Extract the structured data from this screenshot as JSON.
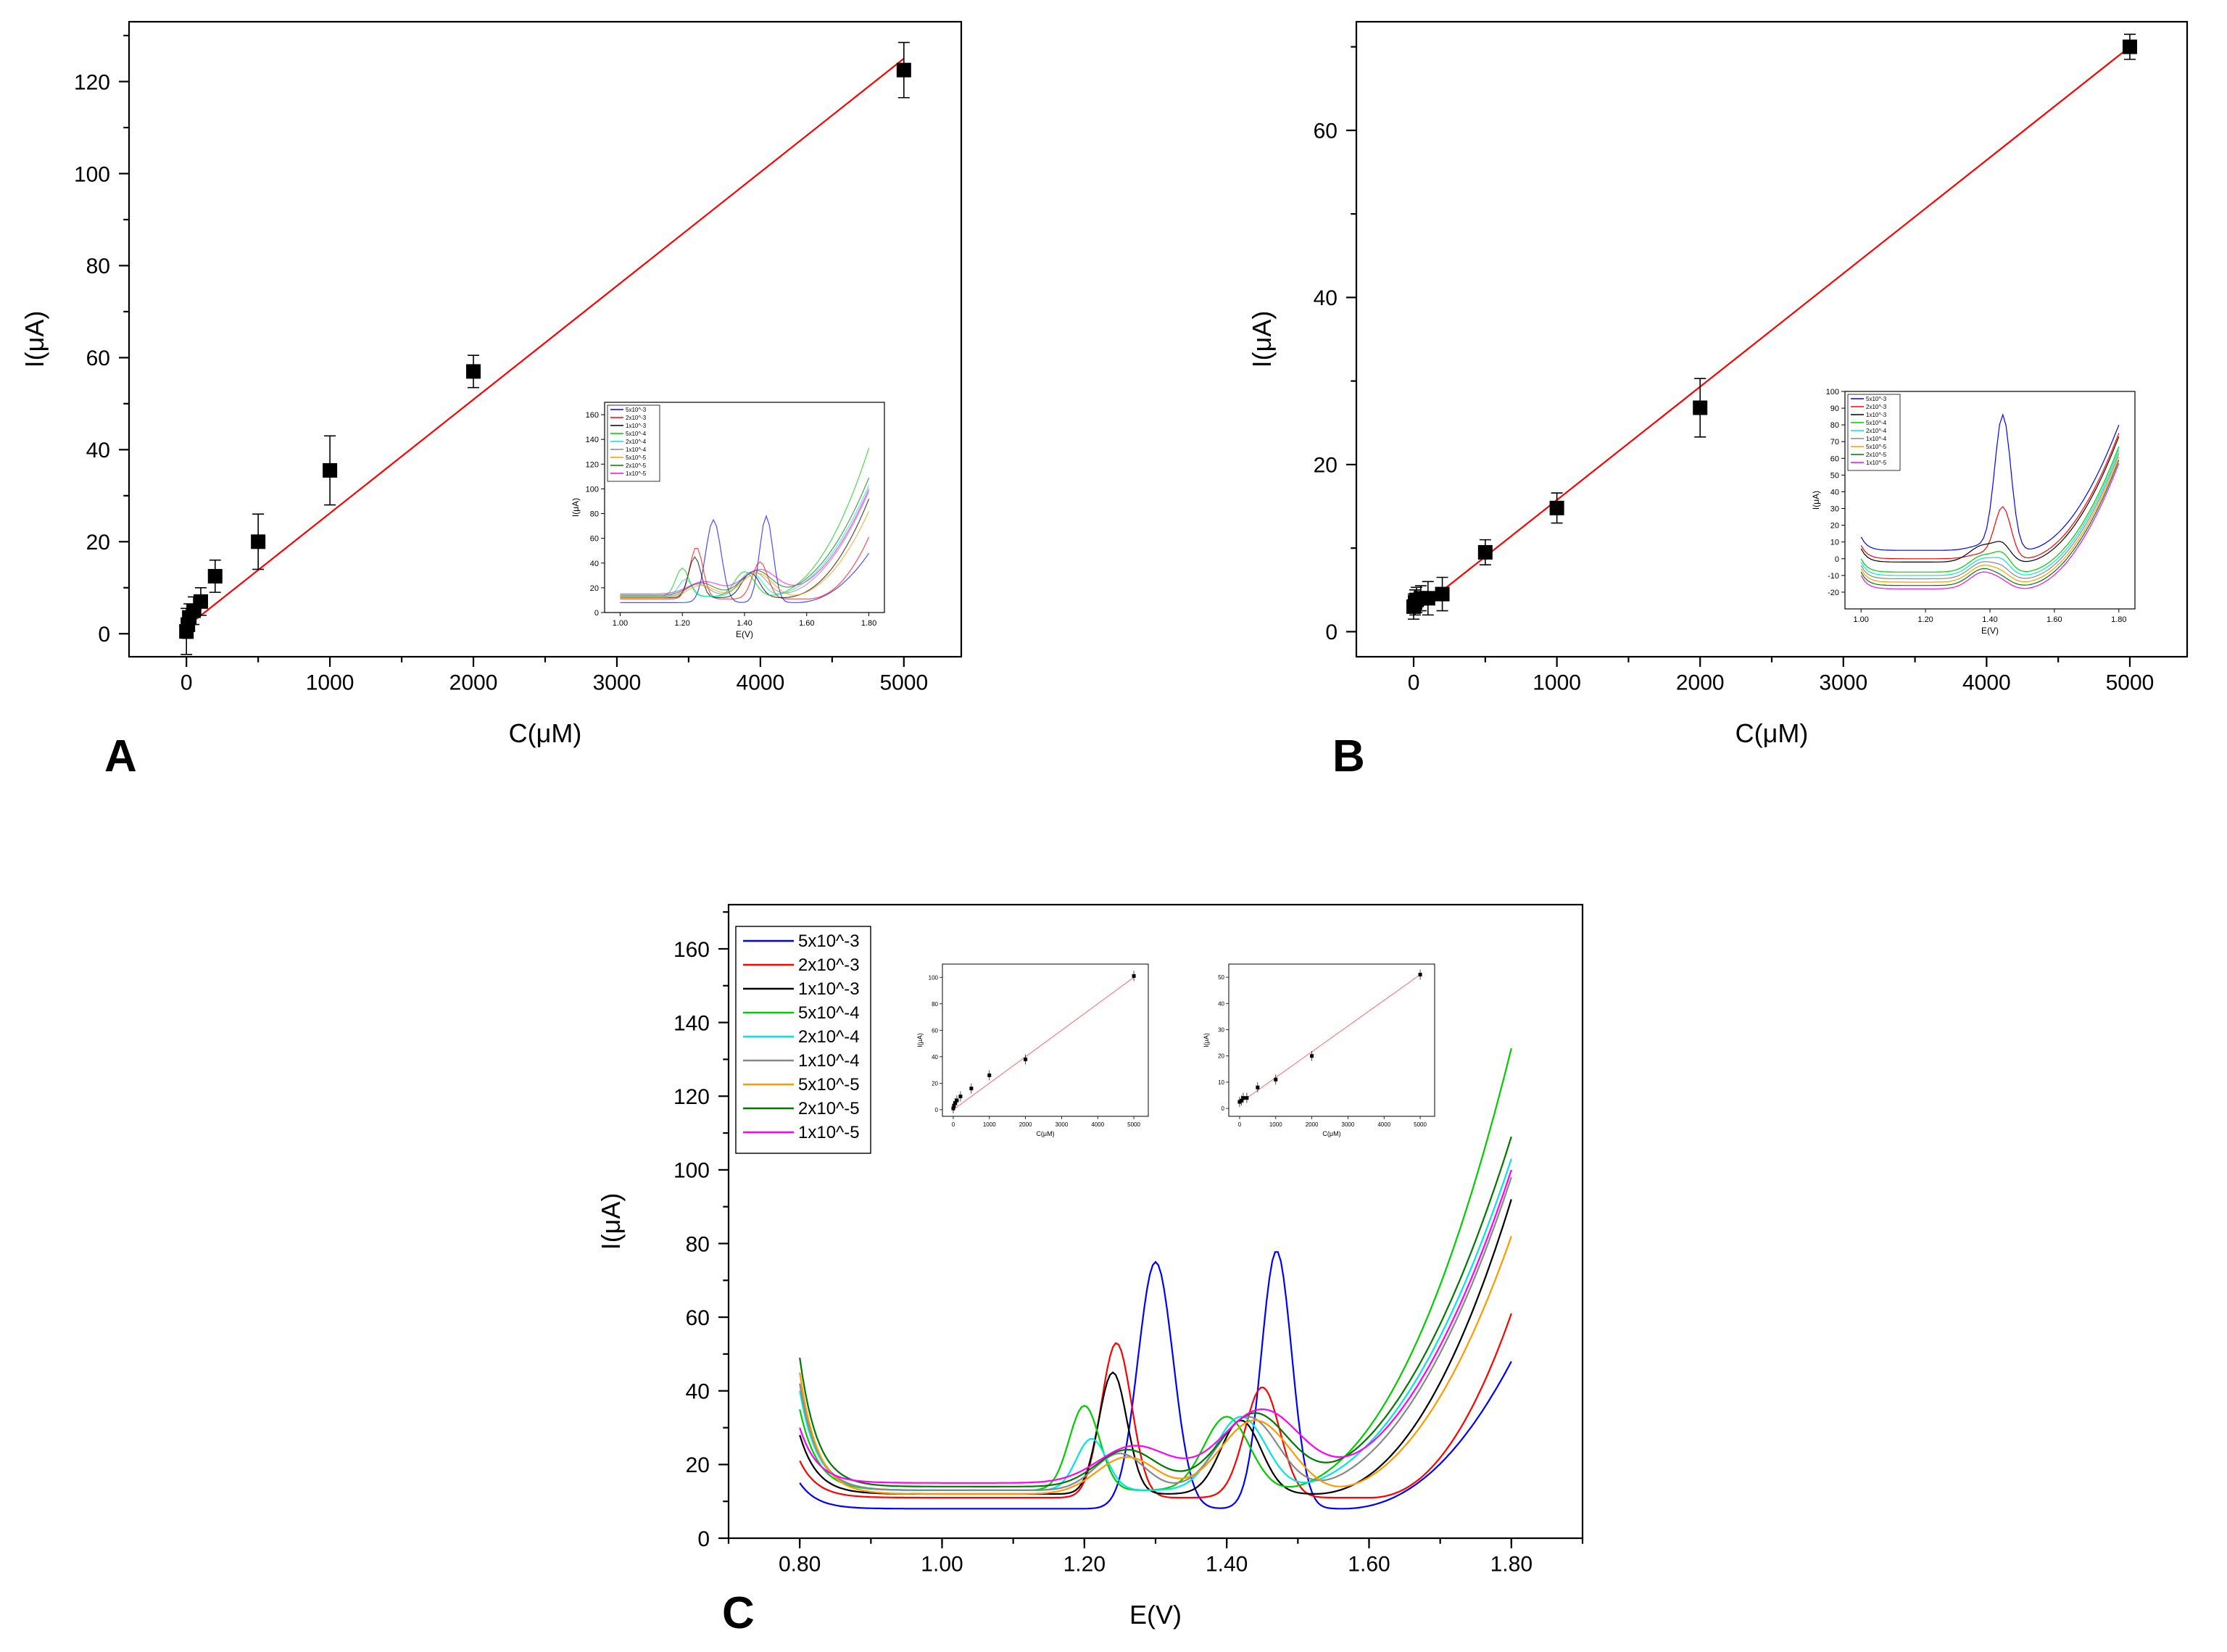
{
  "chart_data": [
    {
      "id": "A",
      "panel_label": "A",
      "type": "scatter",
      "title": "",
      "xlabel": "C(μM)",
      "ylabel": "I(μA)",
      "xlim": [
        -400,
        5400
      ],
      "ylim": [
        -5,
        133
      ],
      "xticks": [
        0,
        1000,
        2000,
        3000,
        4000,
        5000
      ],
      "yticks": [
        0,
        20,
        40,
        60,
        80,
        100,
        120
      ],
      "x": [
        0,
        10,
        20,
        50,
        100,
        200,
        500,
        1000,
        2000,
        5000
      ],
      "y": [
        0.5,
        2,
        3.5,
        5,
        7,
        12.5,
        20,
        35.5,
        57,
        122.5
      ],
      "yerr": [
        5,
        3,
        3,
        3,
        3,
        3.5,
        6,
        7.5,
        3.5,
        6
      ],
      "fit_line": {
        "x": [
          0,
          5000
        ],
        "y": [
          1.5,
          125
        ],
        "color": "#ff0000"
      },
      "inset": {
        "type": "line",
        "xlabel": "E(V)",
        "ylabel": "I(μA)",
        "xlim": [
          0.95,
          1.85
        ],
        "ylim": [
          0,
          170
        ],
        "xticks": [
          "1.00",
          "1.20",
          "1.40",
          "1.60",
          "1.80"
        ],
        "yticks": [
          0,
          20,
          40,
          60,
          80,
          100,
          120,
          140,
          160
        ],
        "legend": [
          "5x10^-3",
          "2x10^-3",
          "1x10^-3",
          "5x10^-4",
          "2x10^-4",
          "1x10^-4",
          "5x10^-5",
          "2x10^-5",
          "1x10^-5"
        ]
      }
    },
    {
      "id": "B",
      "panel_label": "B",
      "type": "scatter",
      "title": "",
      "xlabel": "C(μM)",
      "ylabel": "I(μA)",
      "xlim": [
        -400,
        5400
      ],
      "ylim": [
        -3,
        73
      ],
      "xticks": [
        0,
        1000,
        2000,
        3000,
        4000,
        5000
      ],
      "yticks": [
        0,
        20,
        40,
        60
      ],
      "x": [
        0,
        10,
        20,
        50,
        100,
        200,
        500,
        1000,
        2000,
        5000
      ],
      "y": [
        3,
        3.5,
        3.8,
        4,
        4,
        4.5,
        9.5,
        14.8,
        26.8,
        70
      ],
      "yerr": [
        1.5,
        1.5,
        1.5,
        1.5,
        2,
        2,
        1.5,
        1.8,
        3.5,
        1.5
      ],
      "fit_line": {
        "x": [
          0,
          5000
        ],
        "y": [
          2.2,
          70
        ],
        "color": "#ff0000"
      },
      "inset": {
        "type": "line",
        "xlabel": "E(V)",
        "ylabel": "I(μA)",
        "xlim": [
          0.95,
          1.85
        ],
        "ylim": [
          -30,
          100
        ],
        "xticks": [
          "1.00",
          "1.20",
          "1.40",
          "1.60",
          "1.80"
        ],
        "yticks": [
          -20,
          -10,
          0,
          10,
          20,
          30,
          40,
          50,
          60,
          70,
          80,
          90,
          100
        ],
        "legend": [
          "5x10^-3",
          "2x10^-3",
          "1x10^-3",
          "5x10^-4",
          "2x10^-4",
          "1x10^-4",
          "5x10^-5",
          "2x10^-5",
          "1x10^-5"
        ]
      }
    },
    {
      "id": "C",
      "panel_label": "C",
      "type": "line",
      "title": "",
      "xlabel": "E(V)",
      "ylabel": "I(μA)",
      "xlim": [
        0.7,
        1.9
      ],
      "ylim": [
        0,
        172
      ],
      "xticks": [
        "0.80",
        "1.00",
        "1.20",
        "1.40",
        "1.60",
        "1.80"
      ],
      "yticks": [
        0,
        20,
        40,
        60,
        80,
        100,
        120,
        140,
        160
      ],
      "legend_position": "top-left",
      "series": [
        {
          "name": "5x10^-3",
          "color": "#0000ff",
          "base": 8,
          "peaks": [
            [
              1.3,
              0.035,
              67
            ],
            [
              1.47,
              0.03,
              70
            ]
          ],
          "rise": [
            1.56,
            40
          ],
          "start": 15
        },
        {
          "name": "2x10^-3",
          "color": "#ff0000",
          "base": 11,
          "peaks": [
            [
              1.245,
              0.03,
              42
            ],
            [
              1.45,
              0.035,
              30
            ]
          ],
          "rise": [
            1.6,
            50
          ],
          "start": 21
        },
        {
          "name": "1x10^-3",
          "color": "#000000",
          "base": 12,
          "peaks": [
            [
              1.24,
              0.028,
              33
            ],
            [
              1.42,
              0.04,
              20
            ]
          ],
          "rise": [
            1.52,
            80
          ],
          "start": 28
        },
        {
          "name": "5x10^-4",
          "color": "#00cc00",
          "base": 13,
          "peaks": [
            [
              1.2,
              0.03,
              23
            ],
            [
              1.4,
              0.045,
              20
            ]
          ],
          "rise": [
            1.46,
            120
          ],
          "start": 35
        },
        {
          "name": "2x10^-4",
          "color": "#00e5e5",
          "base": 13,
          "peaks": [
            [
              1.21,
              0.03,
              14
            ],
            [
              1.42,
              0.05,
              20
            ]
          ],
          "rise": [
            1.46,
            90
          ],
          "start": 40
        },
        {
          "name": "1x10^-4",
          "color": "#888888",
          "base": 13,
          "peaks": [
            [
              1.25,
              0.05,
              10
            ],
            [
              1.43,
              0.06,
              20
            ]
          ],
          "rise": [
            1.48,
            85
          ],
          "start": 42
        },
        {
          "name": "5x10^-5",
          "color": "#ff9900",
          "base": 12,
          "peaks": [
            [
              1.26,
              0.06,
              10
            ],
            [
              1.44,
              0.07,
              20
            ]
          ],
          "rise": [
            1.52,
            70
          ],
          "start": 45
        },
        {
          "name": "2x10^-5",
          "color": "#007700",
          "base": 14,
          "peaks": [
            [
              1.26,
              0.06,
              10
            ],
            [
              1.44,
              0.07,
              20
            ]
          ],
          "rise": [
            1.46,
            95
          ],
          "start": 49
        },
        {
          "name": "1x10^-5",
          "color": "#ff00ff",
          "base": 15,
          "peaks": [
            [
              1.27,
              0.07,
              10
            ],
            [
              1.45,
              0.08,
              20
            ]
          ],
          "rise": [
            1.48,
            85
          ],
          "start": 30
        }
      ],
      "insets": [
        {
          "xlabel": "C(μM)",
          "ylabel": "I(μA)",
          "xlim": [
            -300,
            5400
          ],
          "ylim": [
            -5,
            110
          ],
          "xticks": [
            0,
            1000,
            2000,
            3000,
            4000,
            5000
          ],
          "yticks": [
            0,
            20,
            40,
            60,
            80,
            100
          ],
          "x": [
            0,
            20,
            50,
            100,
            200,
            500,
            1000,
            2000,
            5000
          ],
          "y": [
            1,
            3,
            5,
            7,
            10,
            16,
            26,
            38,
            101
          ],
          "fit_line": {
            "x": [
              0,
              5000
            ],
            "y": [
              0,
              100
            ]
          }
        },
        {
          "xlabel": "C(μM)",
          "ylabel": "I(μA)",
          "xlim": [
            -300,
            5400
          ],
          "ylim": [
            -3,
            55
          ],
          "xticks": [
            0,
            1000,
            2000,
            3000,
            4000,
            5000
          ],
          "yticks": [
            0,
            10,
            20,
            30,
            40,
            50
          ],
          "x": [
            0,
            50,
            100,
            200,
            500,
            1000,
            2000,
            5000
          ],
          "y": [
            2.5,
            3,
            4,
            4,
            8,
            11,
            20,
            51
          ],
          "fit_line": {
            "x": [
              0,
              5000
            ],
            "y": [
              2,
              51
            ]
          }
        }
      ]
    }
  ]
}
